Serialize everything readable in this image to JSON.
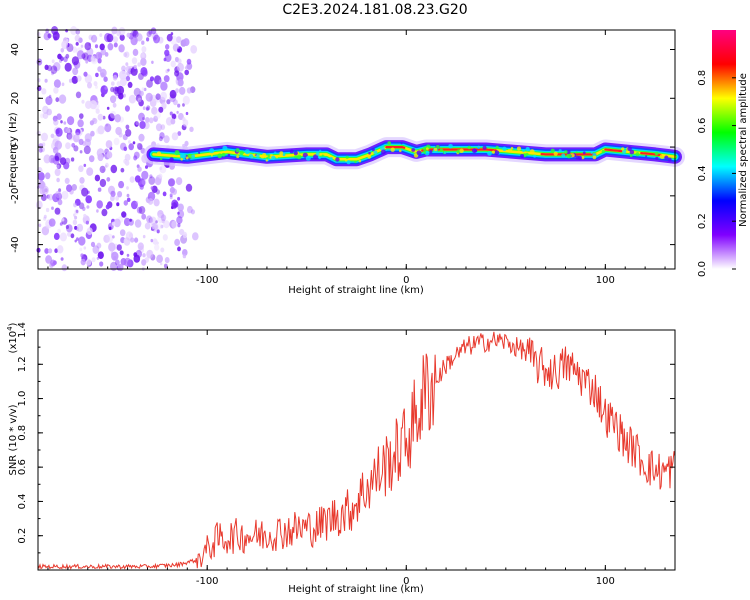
{
  "title": "C2E3.2024.181.08.23.G20",
  "chart_data": [
    {
      "type": "heatmap",
      "xlabel": "Height of straight line (km)",
      "ylabel": "Frequency (Hz)",
      "xlim": [
        -185,
        135
      ],
      "ylim": [
        -50,
        48
      ],
      "xticks": [
        -100,
        0,
        100
      ],
      "yticks": [
        -40,
        -20,
        0,
        20,
        40
      ],
      "noise_region": {
        "x": [
          -185,
          -115
        ],
        "y": [
          -50,
          48
        ]
      },
      "ridge": [
        {
          "x": -127,
          "f": -3
        },
        {
          "x": -110,
          "f": -4
        },
        {
          "x": -90,
          "f": -2
        },
        {
          "x": -70,
          "f": -4
        },
        {
          "x": -50,
          "f": -3
        },
        {
          "x": -40,
          "f": -3
        },
        {
          "x": -35,
          "f": -5
        },
        {
          "x": -25,
          "f": -5
        },
        {
          "x": -18,
          "f": -3
        },
        {
          "x": -10,
          "f": 0
        },
        {
          "x": -2,
          "f": 0
        },
        {
          "x": 5,
          "f": -2
        },
        {
          "x": 10,
          "f": -1
        },
        {
          "x": 40,
          "f": -1
        },
        {
          "x": 70,
          "f": -3
        },
        {
          "x": 95,
          "f": -3
        },
        {
          "x": 100,
          "f": -1
        },
        {
          "x": 112,
          "f": -2
        },
        {
          "x": 125,
          "f": -3
        },
        {
          "x": 135,
          "f": -4
        }
      ],
      "colorbar": {
        "label": "Normalized spectral amplitude",
        "range": [
          0,
          1
        ],
        "ticks": [
          "0.0",
          "0.2",
          "0.4",
          "0.6",
          "0.8"
        ],
        "colors": [
          "#ffffff",
          "#8000ff",
          "#0000ff",
          "#00ffff",
          "#00ff00",
          "#ffff00",
          "#ff0000",
          "#ff0080"
        ]
      }
    },
    {
      "type": "line",
      "xlabel": "Height of straight line (km)",
      "ylabel": "SNR (10 * v/v)",
      "yscale_label": "(x10",
      "yscale_exp": "4",
      "xlim": [
        -185,
        135
      ],
      "ylim": [
        0,
        1.4
      ],
      "xticks": [
        -100,
        0,
        100
      ],
      "yticks": [
        "0.2",
        "0.4",
        "0.6",
        "0.8",
        "1.0",
        "1.2",
        "1.4"
      ],
      "color": "#e83a2e",
      "series": [
        {
          "x": [
            -185,
            -160,
            -130,
            -115,
            -105,
            -100,
            -95,
            -85,
            -75,
            -65,
            -55,
            -45,
            -35,
            -28,
            -22,
            -15,
            -10,
            -5,
            0,
            5,
            10,
            15,
            20,
            25,
            30,
            35,
            40,
            45,
            50,
            55,
            60,
            65,
            70,
            75,
            80,
            85,
            90,
            95,
            100,
            105,
            110,
            115,
            120,
            125,
            130,
            135
          ],
          "y": [
            0.02,
            0.02,
            0.02,
            0.03,
            0.06,
            0.12,
            0.18,
            0.2,
            0.2,
            0.22,
            0.24,
            0.25,
            0.32,
            0.35,
            0.45,
            0.55,
            0.62,
            0.68,
            0.76,
            0.9,
            1.05,
            1.1,
            1.2,
            1.25,
            1.3,
            1.32,
            1.33,
            1.34,
            1.33,
            1.3,
            1.28,
            1.2,
            1.17,
            1.15,
            1.2,
            1.16,
            1.1,
            1.05,
            0.9,
            0.85,
            0.75,
            0.7,
            0.62,
            0.58,
            0.57,
            0.6
          ]
        }
      ]
    }
  ]
}
